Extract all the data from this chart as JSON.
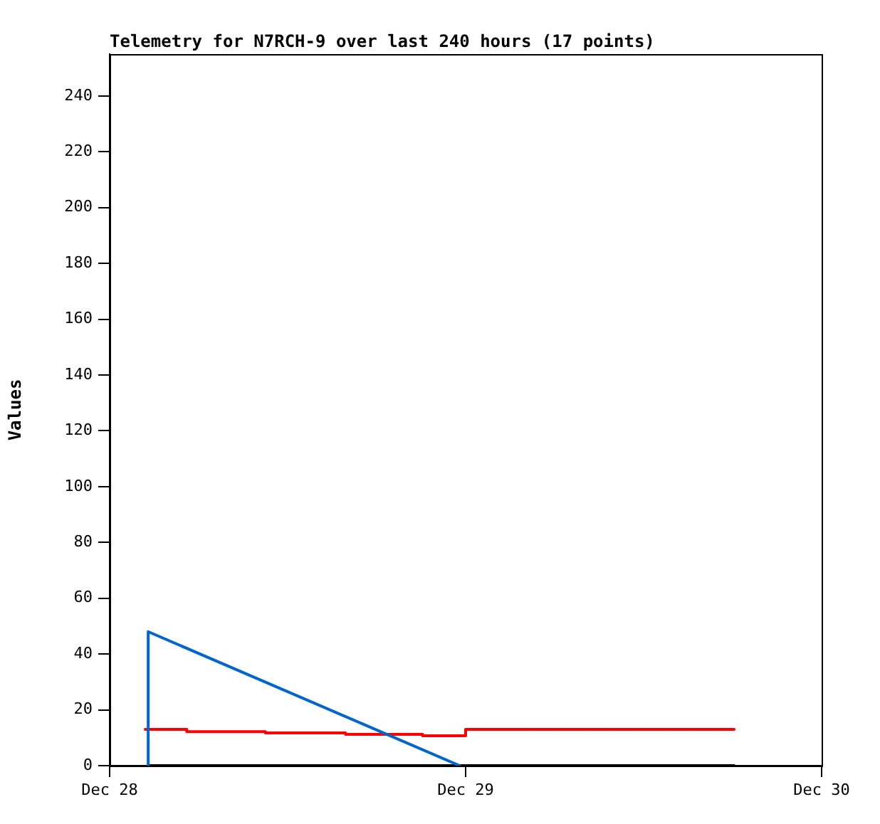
{
  "chart_data": {
    "type": "line",
    "title": "Telemetry for N7RCH-9 over last 240 hours (17 points)",
    "ylabel": "Values",
    "xlim": [
      "--12-28",
      "--12-30"
    ],
    "xticks": [
      {
        "value": "--12-28",
        "label": "Dec 28"
      },
      {
        "value": "--12-29",
        "label": "Dec 29"
      },
      {
        "value": "--12-30",
        "label": "Dec 30"
      }
    ],
    "ylim": [
      0,
      255
    ],
    "yticks": [
      0,
      20,
      40,
      60,
      80,
      100,
      120,
      140,
      160,
      180,
      200,
      220,
      240
    ],
    "grid": false,
    "legend": false,
    "marker": "none",
    "line_style": "solid",
    "series": [
      {
        "type": "line",
        "color": "#0066cc",
        "x": [
          "--12-28T02:36",
          "--12-28T02:36",
          "--12-28T23:36"
        ],
        "values": [
          0,
          48,
          0
        ]
      },
      {
        "type": "step",
        "color": "#ff0000",
        "x": [
          "--12-28T02:24",
          "--12-28T05:12",
          "--12-28T10:30",
          "--12-28T15:54",
          "--12-28T21:06",
          "--12-29T00:00",
          "--12-29T18:06"
        ],
        "values": [
          13,
          12.2,
          11.7,
          11.2,
          10.7,
          13,
          13
        ]
      },
      {
        "type": "line",
        "color": "#000000",
        "x": [
          "--12-28T02:36",
          "--12-29T18:06"
        ],
        "values": [
          0,
          0
        ]
      }
    ]
  }
}
